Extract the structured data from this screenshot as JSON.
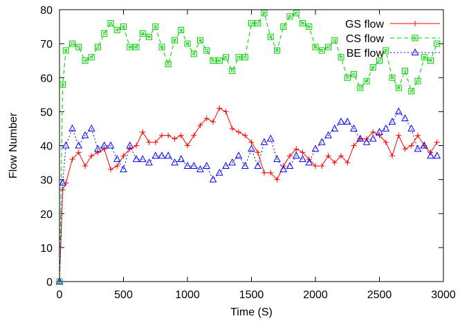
{
  "chart_data": {
    "type": "line",
    "title": "",
    "xlabel": "Time (S)",
    "ylabel": "Flow Number",
    "xlim": [
      0,
      3000
    ],
    "ylim": [
      0,
      80
    ],
    "xticks": [
      0,
      500,
      1000,
      1500,
      2000,
      2500,
      3000
    ],
    "yticks": [
      0,
      10,
      20,
      30,
      40,
      50,
      60,
      70,
      80
    ],
    "grid": false,
    "legend_position": "top-right",
    "series": [
      {
        "name": "GS flow",
        "color": "#ff0000",
        "marker": "plus",
        "dash": "solid",
        "x": [
          0,
          25,
          50,
          100,
          150,
          200,
          250,
          300,
          350,
          400,
          450,
          500,
          550,
          600,
          650,
          700,
          750,
          800,
          850,
          900,
          950,
          1000,
          1050,
          1100,
          1150,
          1200,
          1250,
          1300,
          1350,
          1400,
          1450,
          1500,
          1550,
          1600,
          1650,
          1700,
          1750,
          1800,
          1850,
          1900,
          1950,
          2000,
          2050,
          2100,
          2150,
          2200,
          2250,
          2300,
          2350,
          2400,
          2450,
          2500,
          2550,
          2600,
          2650,
          2700,
          2750,
          2800,
          2850,
          2900,
          2950
        ],
        "y": [
          0,
          27,
          29,
          36,
          38,
          34,
          37,
          38,
          39,
          33,
          34,
          37,
          39,
          40,
          44,
          41,
          41,
          43,
          43,
          42,
          43,
          40,
          43,
          46,
          48,
          47,
          51,
          50,
          45,
          44,
          43,
          41,
          38,
          32,
          32,
          30,
          34,
          37,
          39,
          38,
          36,
          34,
          34,
          37,
          35,
          37,
          35,
          40,
          42,
          42,
          44,
          43,
          41,
          37,
          43,
          39,
          40,
          43,
          40,
          38,
          41
        ]
      },
      {
        "name": "CS flow",
        "color": "#00cc00",
        "marker": "square",
        "dash": "dashed",
        "x": [
          0,
          25,
          50,
          100,
          150,
          200,
          250,
          300,
          350,
          400,
          450,
          500,
          550,
          600,
          650,
          700,
          750,
          800,
          850,
          900,
          950,
          1000,
          1050,
          1100,
          1150,
          1200,
          1250,
          1300,
          1350,
          1400,
          1450,
          1500,
          1550,
          1600,
          1650,
          1700,
          1750,
          1800,
          1850,
          1900,
          1950,
          2000,
          2050,
          2100,
          2150,
          2200,
          2250,
          2300,
          2350,
          2400,
          2450,
          2500,
          2550,
          2600,
          2650,
          2700,
          2750,
          2800,
          2850,
          2900,
          2950
        ],
        "y": [
          0,
          58,
          68,
          70,
          69,
          65,
          66,
          69,
          73,
          76,
          74,
          75,
          69,
          69,
          73,
          72,
          75,
          69,
          64,
          71,
          74,
          70,
          67,
          71,
          68,
          65,
          65,
          66,
          62,
          66,
          66,
          76,
          76,
          79,
          72,
          68,
          75,
          78,
          79,
          76,
          75,
          69,
          68,
          69,
          71,
          66,
          60,
          61,
          57,
          59,
          63,
          65,
          68,
          60,
          57,
          62,
          56,
          59,
          66,
          65,
          70
        ]
      },
      {
        "name": "BE flow",
        "color": "#0000ff",
        "marker": "triangle",
        "dash": "dotted",
        "x": [
          0,
          25,
          50,
          100,
          150,
          200,
          250,
          300,
          350,
          400,
          450,
          500,
          550,
          600,
          650,
          700,
          750,
          800,
          850,
          900,
          950,
          1000,
          1050,
          1100,
          1150,
          1200,
          1250,
          1300,
          1350,
          1400,
          1450,
          1500,
          1550,
          1600,
          1650,
          1700,
          1750,
          1800,
          1850,
          1900,
          1950,
          2000,
          2050,
          2100,
          2150,
          2200,
          2250,
          2300,
          2350,
          2400,
          2450,
          2500,
          2550,
          2600,
          2650,
          2700,
          2750,
          2800,
          2850,
          2900,
          2950
        ],
        "y": [
          0,
          29,
          40,
          45,
          40,
          43,
          45,
          39,
          40,
          40,
          36,
          33,
          40,
          36,
          36,
          35,
          37,
          37,
          37,
          35,
          36,
          34,
          34,
          33,
          34,
          30,
          32,
          34,
          35,
          37,
          34,
          39,
          34,
          41,
          42,
          36,
          33,
          34,
          37,
          36,
          35,
          39,
          41,
          43,
          45,
          47,
          47,
          45,
          42,
          41,
          42,
          44,
          45,
          47,
          50,
          48,
          45,
          39,
          40,
          37,
          37
        ]
      }
    ]
  }
}
